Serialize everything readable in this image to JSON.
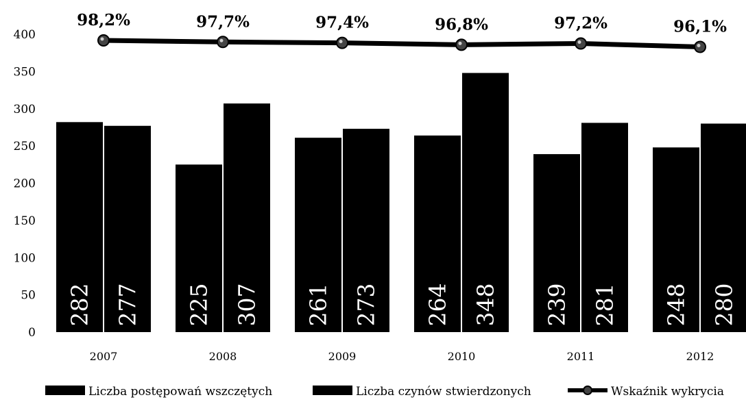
{
  "chart_data": {
    "type": "bar",
    "categories": [
      "2007",
      "2008",
      "2009",
      "2010",
      "2011",
      "2012"
    ],
    "series": [
      {
        "name": "Liczba postępowań wszczętych",
        "values": [
          282,
          225,
          261,
          264,
          239,
          248
        ],
        "color": "#000000"
      },
      {
        "name": "Liczba czynów stwierdzonych",
        "values": [
          277,
          307,
          273,
          348,
          281,
          280
        ],
        "color": "#000000"
      }
    ],
    "line_series": {
      "name": "Wskaźnik wykrycia",
      "values": [
        98.2,
        97.7,
        97.4,
        96.8,
        97.2,
        96.1
      ],
      "labels": [
        "98,2%",
        "97,7%",
        "97,4%",
        "96,8%",
        "97,2%",
        "96,1%"
      ]
    },
    "y_ticks": [
      "0",
      "50",
      "100",
      "150",
      "200",
      "250",
      "300",
      "350",
      "400"
    ],
    "ylim": [
      0,
      400
    ],
    "grid": false,
    "legend_position": "bottom"
  }
}
